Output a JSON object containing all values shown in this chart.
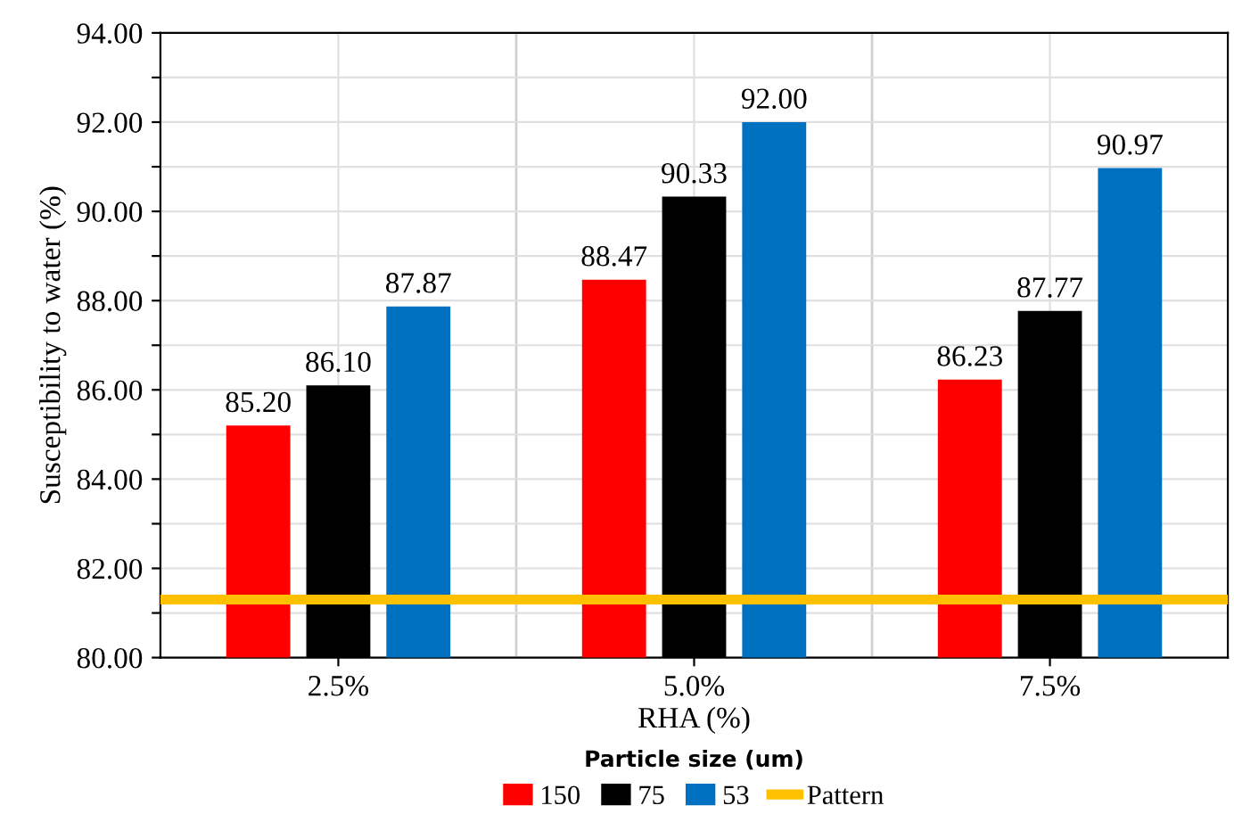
{
  "chart_data": {
    "type": "bar",
    "xlabel": "RHA (%)",
    "ylabel": "Susceptibility to water (%)",
    "legend_title": "Particle size (um)",
    "categories": [
      "2.5%",
      "5.0%",
      "7.5%"
    ],
    "series": [
      {
        "name": "150",
        "color": "#ff0000",
        "values": [
          85.2,
          88.47,
          86.23
        ],
        "value_labels": [
          "85.20",
          "88.47",
          "86.23"
        ]
      },
      {
        "name": "75",
        "color": "#000000",
        "values": [
          86.1,
          90.33,
          87.77
        ],
        "value_labels": [
          "86.10",
          "90.33",
          "87.77"
        ]
      },
      {
        "name": "53",
        "color": "#0070c0",
        "values": [
          87.87,
          92.0,
          90.97
        ],
        "value_labels": [
          "87.87",
          "92.00",
          "90.97"
        ]
      }
    ],
    "ylim": [
      80,
      94
    ],
    "yticks": [
      {
        "value": 80,
        "label": "80.00"
      },
      {
        "value": 81,
        "label": null
      },
      {
        "value": 82,
        "label": "82.00"
      },
      {
        "value": 83,
        "label": null
      },
      {
        "value": 84,
        "label": "84.00"
      },
      {
        "value": 85,
        "label": null
      },
      {
        "value": 86,
        "label": "86.00"
      },
      {
        "value": 87,
        "label": null
      },
      {
        "value": 88,
        "label": "88.00"
      },
      {
        "value": 89,
        "label": null
      },
      {
        "value": 90,
        "label": "90.00"
      },
      {
        "value": 91,
        "label": null
      },
      {
        "value": 92,
        "label": "92.00"
      },
      {
        "value": 93,
        "label": null
      },
      {
        "value": 94,
        "label": "94.00"
      }
    ],
    "ref_lines": [
      {
        "axis": "y",
        "value": 81.3,
        "label": "Pattern",
        "color": "#ffc000"
      }
    ],
    "grid": true,
    "legend": "bottom"
  }
}
